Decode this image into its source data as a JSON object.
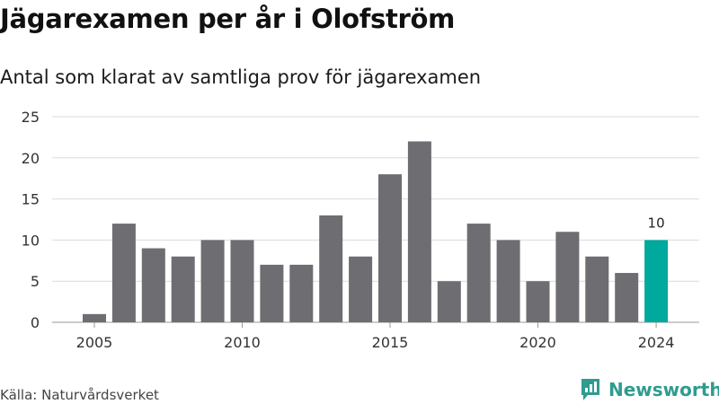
{
  "header": {
    "title": "Jägarexamen per år i Olofström",
    "subtitle": "Antal som klarat av samtliga prov för jägarexamen"
  },
  "footer": {
    "source": "Källa: Naturvårdsverket",
    "brand": "Newsworthy"
  },
  "colors": {
    "bar": "#6e6d72",
    "highlight": "#00a99d",
    "brand": "#2e9c8f",
    "grid": "#dcdcdc"
  },
  "chart_data": {
    "type": "bar",
    "x": [
      2005,
      2006,
      2007,
      2008,
      2009,
      2010,
      2011,
      2012,
      2013,
      2014,
      2015,
      2016,
      2017,
      2018,
      2019,
      2020,
      2021,
      2022,
      2023,
      2024
    ],
    "values": [
      1,
      12,
      9,
      8,
      10,
      10,
      7,
      7,
      13,
      8,
      18,
      22,
      5,
      12,
      10,
      5,
      11,
      8,
      6,
      10
    ],
    "ylim": [
      0,
      25
    ],
    "yticks": [
      0,
      5,
      10,
      15,
      20,
      25
    ],
    "xticks": [
      2005,
      2010,
      2015,
      2020,
      2024
    ],
    "highlight": 2024,
    "data_labels": [
      {
        "x": 2024,
        "label": "10"
      }
    ],
    "grid": true,
    "legend": "none"
  }
}
